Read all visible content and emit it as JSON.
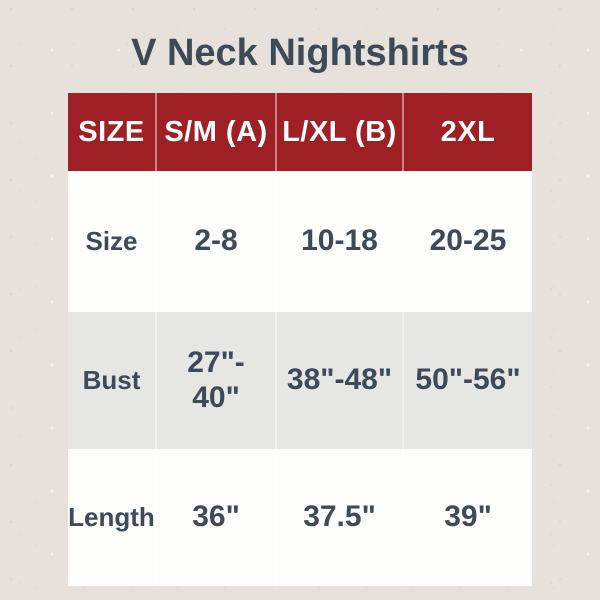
{
  "page": {
    "title": "V Neck Nightshirts"
  },
  "colors": {
    "background": "#e6e2db",
    "header_bg": "#9e2024",
    "header_text": "#ffffff",
    "body_text": "#3e4a57",
    "row_white": "#fdfdfb",
    "row_gray": "#e6e6e4"
  },
  "chart_data": {
    "type": "table",
    "title": "V Neck Nightshirts",
    "columns": [
      "SIZE",
      "S/M (A)",
      "L/XL (B)",
      "2XL"
    ],
    "rows": [
      {
        "label": "Size",
        "values": [
          "2-8",
          "10-18",
          "20-25"
        ]
      },
      {
        "label": "Bust",
        "values": [
          "27\"-\n40\"",
          "38\"-48\"",
          "50\"-56\""
        ]
      },
      {
        "label": "Length",
        "values": [
          "36\"",
          "37.5\"",
          "39\""
        ]
      }
    ],
    "layout": {
      "header_position": "top",
      "row_striping": [
        "white",
        "gray",
        "white"
      ],
      "grid": "column separators only"
    }
  }
}
